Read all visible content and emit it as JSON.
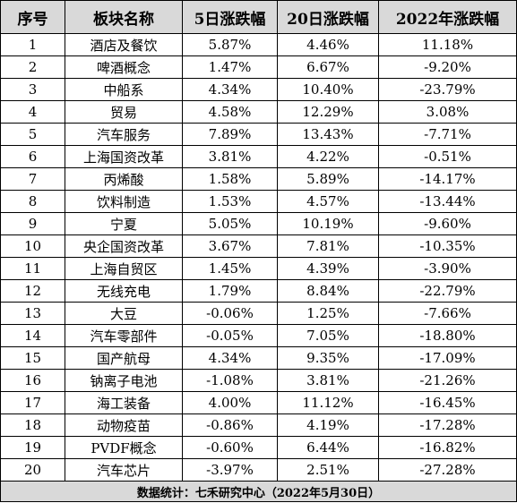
{
  "table": {
    "headers": [
      "序号",
      "板块名称",
      "5日涨跌幅",
      "20日涨跌幅",
      "2022年涨跌幅"
    ],
    "rows": [
      [
        "1",
        "酒店及餐饮",
        "5.87%",
        "4.46%",
        "11.18%"
      ],
      [
        "2",
        "啤酒概念",
        "1.47%",
        "6.67%",
        "-9.20%"
      ],
      [
        "3",
        "中船系",
        "4.34%",
        "10.40%",
        "-23.79%"
      ],
      [
        "4",
        "贸易",
        "4.58%",
        "12.29%",
        "3.08%"
      ],
      [
        "5",
        "汽车服务",
        "7.89%",
        "13.43%",
        "-7.71%"
      ],
      [
        "6",
        "上海国资改革",
        "3.81%",
        "4.22%",
        "-0.51%"
      ],
      [
        "7",
        "丙烯酸",
        "1.58%",
        "5.89%",
        "-14.17%"
      ],
      [
        "8",
        "饮料制造",
        "1.53%",
        "4.57%",
        "-13.44%"
      ],
      [
        "9",
        "宁夏",
        "5.05%",
        "10.19%",
        "-9.60%"
      ],
      [
        "10",
        "央企国资改革",
        "3.67%",
        "7.81%",
        "-10.35%"
      ],
      [
        "11",
        "上海自贸区",
        "1.45%",
        "4.39%",
        "-3.90%"
      ],
      [
        "12",
        "无线充电",
        "1.79%",
        "8.84%",
        "-22.79%"
      ],
      [
        "13",
        "大豆",
        "-0.06%",
        "1.25%",
        "-7.66%"
      ],
      [
        "14",
        "汽车零部件",
        "-0.05%",
        "7.05%",
        "-18.80%"
      ],
      [
        "15",
        "国产航母",
        "4.34%",
        "9.35%",
        "-17.09%"
      ],
      [
        "16",
        "钠离子电池",
        "-1.08%",
        "3.81%",
        "-21.26%"
      ],
      [
        "17",
        "海工装备",
        "4.00%",
        "11.12%",
        "-16.45%"
      ],
      [
        "18",
        "动物疫苗",
        "-0.86%",
        "4.19%",
        "-17.28%"
      ],
      [
        "19",
        "PVDF概念",
        "-0.60%",
        "6.44%",
        "-16.82%"
      ],
      [
        "20",
        "汽车芯片",
        "-3.97%",
        "2.51%",
        "-27.28%"
      ]
    ],
    "footer": "数据统计：七禾研究中心（2022年5月30日）"
  }
}
